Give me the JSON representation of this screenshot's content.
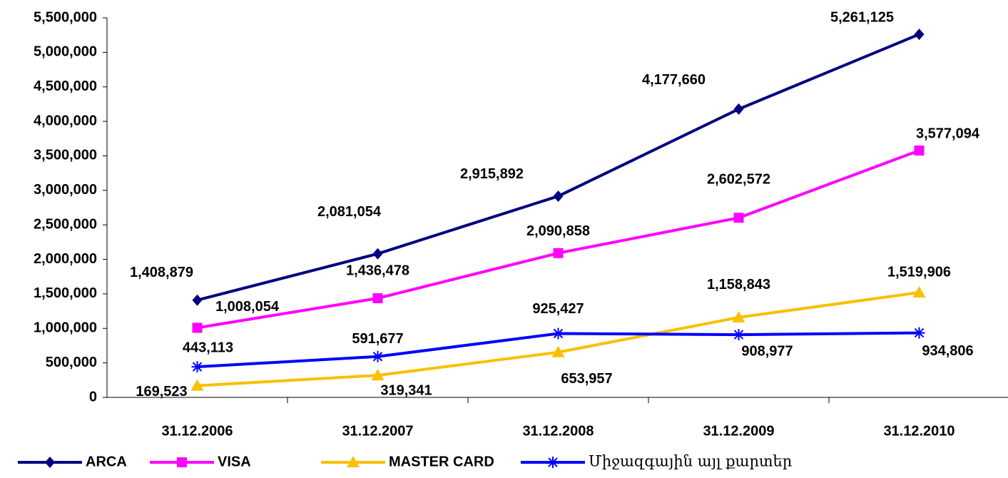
{
  "chart_data": {
    "type": "line",
    "categories": [
      "31.12.2006",
      "31.12.2007",
      "31.12.2008",
      "31.12.2009",
      "31.12.2010"
    ],
    "series": [
      {
        "name": "ARCA",
        "color": "#000080",
        "marker": "diamond",
        "values": [
          1408879,
          2081054,
          2915892,
          4177660,
          5261125
        ],
        "value_labels": [
          "1,408,879",
          "2,081,054",
          "2,915,892",
          "4,177,660",
          "5,261,125"
        ]
      },
      {
        "name": "VISA",
        "color": "#ff00ff",
        "marker": "square",
        "values": [
          1008054,
          1436478,
          2090858,
          2602572,
          3577094
        ],
        "value_labels": [
          "1,008,054",
          "1,436,478",
          "2,090,858",
          "2,602,572",
          "3,577,094"
        ]
      },
      {
        "name": "MASTER CARD",
        "color": "#f8c000",
        "marker": "triangle",
        "values": [
          169523,
          319341,
          653957,
          1158843,
          1519906
        ],
        "value_labels": [
          "169,523",
          "319,341",
          "653,957",
          "1,158,843",
          "1,519,906"
        ]
      },
      {
        "name": "Միջազգային այլ քարտեր",
        "color": "#0000ff",
        "marker": "asterisk",
        "values": [
          443113,
          591677,
          925427,
          908977,
          934806
        ],
        "value_labels": [
          "443,113",
          "591,677",
          "925,427",
          "908,977",
          "934,806"
        ]
      }
    ],
    "ylim": [
      0,
      5500000
    ],
    "yticks": [
      0,
      {
        "value": 500000,
        "label": "500,000"
      },
      {
        "value": 1000000,
        "label": "1,000,000"
      },
      {
        "value": 1500000,
        "label": "1,500,000"
      },
      {
        "value": 2000000,
        "label": "2,000,000"
      },
      {
        "value": 2500000,
        "label": "2,500,000"
      },
      {
        "value": 3000000,
        "label": "3,000,000"
      },
      {
        "value": 3500000,
        "label": "3,500,000"
      },
      {
        "value": 4000000,
        "label": "4,000,000"
      },
      {
        "value": 4500000,
        "label": "4,500,000"
      },
      {
        "value": 5000000,
        "label": "5,000,000"
      },
      {
        "value": 5500000,
        "label": "5,500,000"
      }
    ],
    "grid": false,
    "legend": "bottom"
  }
}
